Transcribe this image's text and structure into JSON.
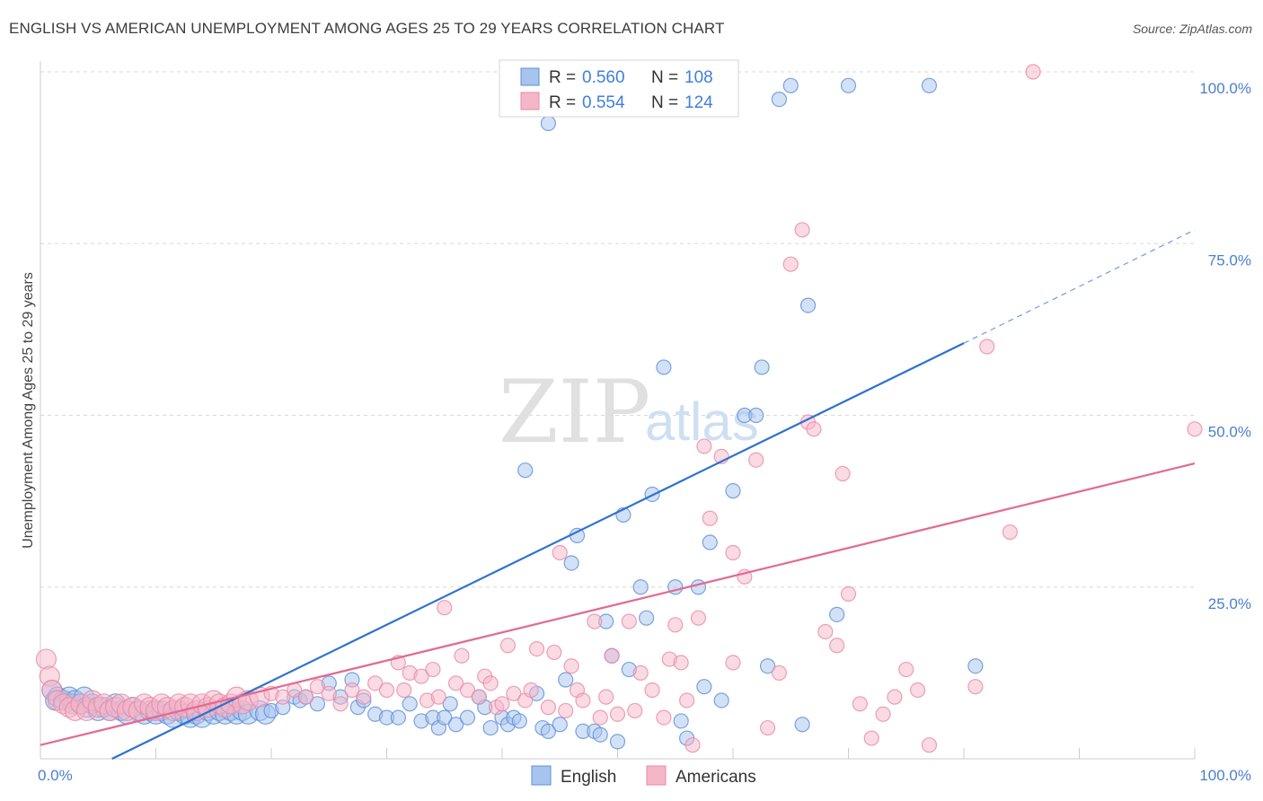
{
  "title": "ENGLISH VS AMERICAN UNEMPLOYMENT AMONG AGES 25 TO 29 YEARS CORRELATION CHART",
  "source": "Source: ZipAtlas.com",
  "watermark": {
    "zip": "ZIP",
    "atlas": "atlas"
  },
  "legend": {
    "rows": [
      {
        "r_label": "R = ",
        "r_value": "0.560",
        "n_label": "N = ",
        "n_value": "108",
        "color": "#a7c4ee"
      },
      {
        "r_label": "R = ",
        "r_value": "0.554",
        "n_label": "N = ",
        "n_value": "124",
        "color": "#f5b6c8"
      }
    ]
  },
  "colors": {
    "english_fill": "#a7c4ee",
    "english_stroke": "#5b8fd8",
    "english_line": "#2f72d0",
    "americans_fill": "#f5b6c8",
    "americans_stroke": "#e88aa6",
    "americans_line": "#e36a93",
    "grid": "#d9d9d9",
    "tick": "#4a7fd0"
  },
  "chart_data": {
    "type": "scatter",
    "xlabel": "",
    "ylabel": "Unemployment Among Ages 25 to 29 years",
    "xlim": [
      0,
      100
    ],
    "ylim": [
      0,
      100
    ],
    "x_tick_labels": [
      "0.0%",
      "100.0%"
    ],
    "y_ticks": [
      {
        "value": 25,
        "label": "25.0%"
      },
      {
        "value": 50,
        "label": "50.0%"
      },
      {
        "value": 75,
        "label": "75.0%"
      },
      {
        "value": 100,
        "label": "100.0%"
      }
    ],
    "grid": true,
    "legend_position": "bottom",
    "series": [
      {
        "name": "English",
        "trend": {
          "x0": 6.2,
          "y0": 0,
          "x1": 80,
          "y1": 60.5,
          "dash_to_x": 100,
          "dash_to_y": 77
        },
        "points": [
          [
            1,
            10
          ],
          [
            1.3,
            8.5
          ],
          [
            1.5,
            9
          ],
          [
            2,
            8.5
          ],
          [
            2.5,
            9
          ],
          [
            2.8,
            8
          ],
          [
            3,
            8.5
          ],
          [
            3.5,
            8
          ],
          [
            3.8,
            9
          ],
          [
            4,
            7.5
          ],
          [
            4.5,
            8
          ],
          [
            5,
            7
          ],
          [
            5.5,
            7.5
          ],
          [
            6,
            7
          ],
          [
            6.5,
            8
          ],
          [
            7,
            7
          ],
          [
            7.5,
            6.5
          ],
          [
            8,
            7.5
          ],
          [
            8.5,
            7
          ],
          [
            9,
            6.5
          ],
          [
            9.5,
            7
          ],
          [
            10,
            6.5
          ],
          [
            10.5,
            7
          ],
          [
            11,
            6.5
          ],
          [
            11.5,
            6
          ],
          [
            12,
            7
          ],
          [
            12.5,
            6.5
          ],
          [
            13,
            6
          ],
          [
            13.5,
            6.5
          ],
          [
            14,
            6
          ],
          [
            14.5,
            7
          ],
          [
            15,
            6.5
          ],
          [
            15.5,
            7
          ],
          [
            16,
            6.5
          ],
          [
            16.5,
            7
          ],
          [
            17,
            6.5
          ],
          [
            17.5,
            7
          ],
          [
            18,
            6.5
          ],
          [
            19,
            7
          ],
          [
            19.5,
            6.5
          ],
          [
            20,
            7
          ],
          [
            21,
            7.5
          ],
          [
            22,
            9
          ],
          [
            22.5,
            8.5
          ],
          [
            23,
            9
          ],
          [
            24,
            8
          ],
          [
            25,
            11
          ],
          [
            26,
            9
          ],
          [
            27,
            11.5
          ],
          [
            27.5,
            7.5
          ],
          [
            28,
            8.5
          ],
          [
            29,
            6.5
          ],
          [
            30,
            6
          ],
          [
            31,
            6
          ],
          [
            32,
            8
          ],
          [
            33,
            5.5
          ],
          [
            34,
            6
          ],
          [
            34.5,
            4.5
          ],
          [
            35,
            6
          ],
          [
            35.5,
            8
          ],
          [
            36,
            5
          ],
          [
            37,
            6
          ],
          [
            38,
            9
          ],
          [
            38.5,
            7.5
          ],
          [
            39,
            4.5
          ],
          [
            40,
            6
          ],
          [
            40.5,
            5
          ],
          [
            41,
            6
          ],
          [
            41.5,
            5.5
          ],
          [
            42,
            42
          ],
          [
            43,
            9.5
          ],
          [
            43.5,
            4.5
          ],
          [
            44,
            4
          ],
          [
            45,
            5
          ],
          [
            45.5,
            11.5
          ],
          [
            46,
            28.5
          ],
          [
            46.5,
            32.5
          ],
          [
            47,
            4
          ],
          [
            48,
            4
          ],
          [
            48.5,
            3.5
          ],
          [
            49,
            20
          ],
          [
            49.5,
            15
          ],
          [
            50,
            2.5
          ],
          [
            50.5,
            35.5
          ],
          [
            51,
            13
          ],
          [
            52,
            25
          ],
          [
            52.5,
            20.5
          ],
          [
            53,
            38.5
          ],
          [
            54,
            57
          ],
          [
            55,
            25
          ],
          [
            55.5,
            5.5
          ],
          [
            56,
            3
          ],
          [
            57,
            25
          ],
          [
            57.5,
            10.5
          ],
          [
            58,
            31.5
          ],
          [
            59,
            8.5
          ],
          [
            60,
            39
          ],
          [
            61,
            50
          ],
          [
            62,
            50
          ],
          [
            62.5,
            57
          ],
          [
            63,
            13.5
          ],
          [
            64,
            96
          ],
          [
            65,
            98
          ],
          [
            66,
            5
          ],
          [
            66.5,
            66
          ],
          [
            69,
            21
          ],
          [
            70,
            98
          ],
          [
            77,
            98
          ],
          [
            81,
            13.5
          ],
          [
            41,
            98
          ],
          [
            44,
            92.5
          ]
        ]
      },
      {
        "name": "Americans",
        "trend": {
          "x0": 0,
          "y0": 2,
          "x1": 100,
          "y1": 43
        },
        "points": [
          [
            0.5,
            14.5
          ],
          [
            0.8,
            12
          ],
          [
            1,
            10
          ],
          [
            1.5,
            8.5
          ],
          [
            2,
            8
          ],
          [
            2.5,
            7.5
          ],
          [
            3,
            7
          ],
          [
            3.5,
            8
          ],
          [
            4,
            7
          ],
          [
            4.5,
            8.5
          ],
          [
            5,
            7.5
          ],
          [
            5.5,
            8
          ],
          [
            6,
            7
          ],
          [
            6.5,
            7.5
          ],
          [
            7,
            8
          ],
          [
            7.5,
            7
          ],
          [
            8,
            7.5
          ],
          [
            8.5,
            7
          ],
          [
            9,
            8
          ],
          [
            9.5,
            7.5
          ],
          [
            10,
            7
          ],
          [
            10.5,
            8
          ],
          [
            11,
            7.5
          ],
          [
            11.5,
            7
          ],
          [
            12,
            8
          ],
          [
            12.5,
            7.5
          ],
          [
            13,
            8
          ],
          [
            13.5,
            7
          ],
          [
            14,
            8
          ],
          [
            14.5,
            7.5
          ],
          [
            15,
            8.5
          ],
          [
            15.5,
            8
          ],
          [
            16,
            7.5
          ],
          [
            16.5,
            8
          ],
          [
            17,
            9
          ],
          [
            17.5,
            8
          ],
          [
            18,
            8.5
          ],
          [
            19,
            9
          ],
          [
            20,
            9.5
          ],
          [
            21,
            9
          ],
          [
            22,
            10
          ],
          [
            23,
            9
          ],
          [
            24,
            10.5
          ],
          [
            25,
            9.5
          ],
          [
            26,
            8
          ],
          [
            27,
            10
          ],
          [
            28,
            9
          ],
          [
            29,
            11
          ],
          [
            30,
            10
          ],
          [
            31,
            14
          ],
          [
            31.5,
            10
          ],
          [
            32,
            12.5
          ],
          [
            33,
            12
          ],
          [
            33.5,
            8.5
          ],
          [
            34,
            13
          ],
          [
            34.5,
            9
          ],
          [
            35,
            22
          ],
          [
            36,
            11
          ],
          [
            36.5,
            15
          ],
          [
            37,
            10
          ],
          [
            38,
            9
          ],
          [
            38.5,
            12
          ],
          [
            39,
            11
          ],
          [
            39.5,
            7.5
          ],
          [
            40,
            8
          ],
          [
            40.5,
            16.5
          ],
          [
            41,
            9.5
          ],
          [
            42,
            8.5
          ],
          [
            42.5,
            10
          ],
          [
            43,
            16
          ],
          [
            44,
            7.5
          ],
          [
            44.5,
            15.5
          ],
          [
            45,
            30
          ],
          [
            45.5,
            7
          ],
          [
            46,
            13.5
          ],
          [
            46.5,
            10
          ],
          [
            47,
            8.5
          ],
          [
            48,
            20
          ],
          [
            48.5,
            6
          ],
          [
            49,
            9
          ],
          [
            49.5,
            15
          ],
          [
            50,
            6.5
          ],
          [
            51,
            20
          ],
          [
            51.5,
            7
          ],
          [
            52,
            12.5
          ],
          [
            53,
            10
          ],
          [
            54,
            6
          ],
          [
            54.5,
            14.5
          ],
          [
            55,
            19.5
          ],
          [
            55.5,
            14
          ],
          [
            56,
            8.5
          ],
          [
            56.5,
            2
          ],
          [
            57,
            20.5
          ],
          [
            57.5,
            45.5
          ],
          [
            58,
            35
          ],
          [
            59,
            44
          ],
          [
            60,
            14
          ],
          [
            61,
            26.5
          ],
          [
            62,
            43.5
          ],
          [
            63,
            4.5
          ],
          [
            64,
            12.5
          ],
          [
            65,
            72
          ],
          [
            66,
            77
          ],
          [
            66.5,
            49
          ],
          [
            67,
            48
          ],
          [
            68,
            18.5
          ],
          [
            69,
            16.5
          ],
          [
            69.5,
            41.5
          ],
          [
            70,
            24
          ],
          [
            71,
            8
          ],
          [
            72,
            3
          ],
          [
            73,
            6.5
          ],
          [
            74,
            9
          ],
          [
            75,
            13
          ],
          [
            76,
            10
          ],
          [
            77,
            2
          ],
          [
            81,
            10.5
          ],
          [
            82,
            60
          ],
          [
            84,
            33
          ],
          [
            86,
            100
          ],
          [
            100,
            48
          ],
          [
            60,
            30
          ]
        ]
      }
    ]
  }
}
